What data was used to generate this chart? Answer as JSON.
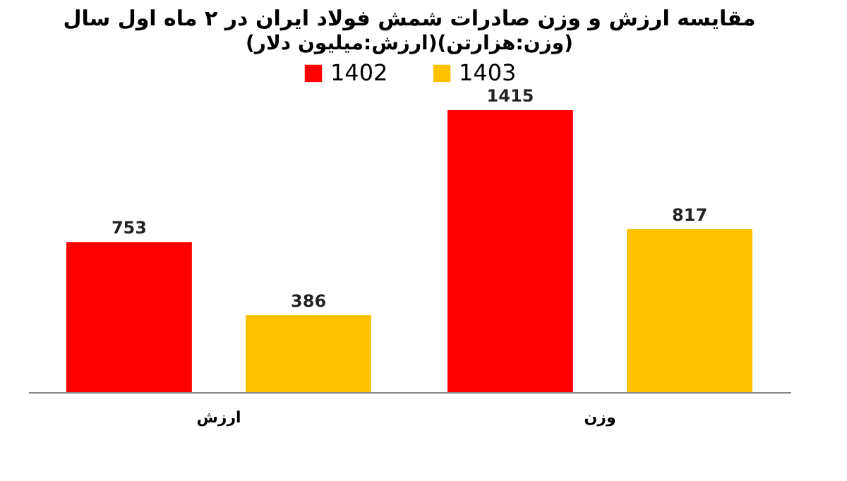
{
  "chart_data": {
    "type": "bar",
    "title": "مقایسه ارزش و وزن صادرات شمش فولاد ایران در ۲ ماه اول سال",
    "subtitle": "(ارزش:میلیون دلار)(وزن:هزارتن)",
    "categories": [
      "ارزش",
      "وزن"
    ],
    "series": [
      {
        "name": "1402",
        "color": "#ff0000",
        "values": [
          753,
          1415
        ]
      },
      {
        "name": "1403",
        "color": "#ffc000",
        "values": [
          386,
          817
        ]
      }
    ],
    "data_labels": true,
    "legend": "top"
  }
}
